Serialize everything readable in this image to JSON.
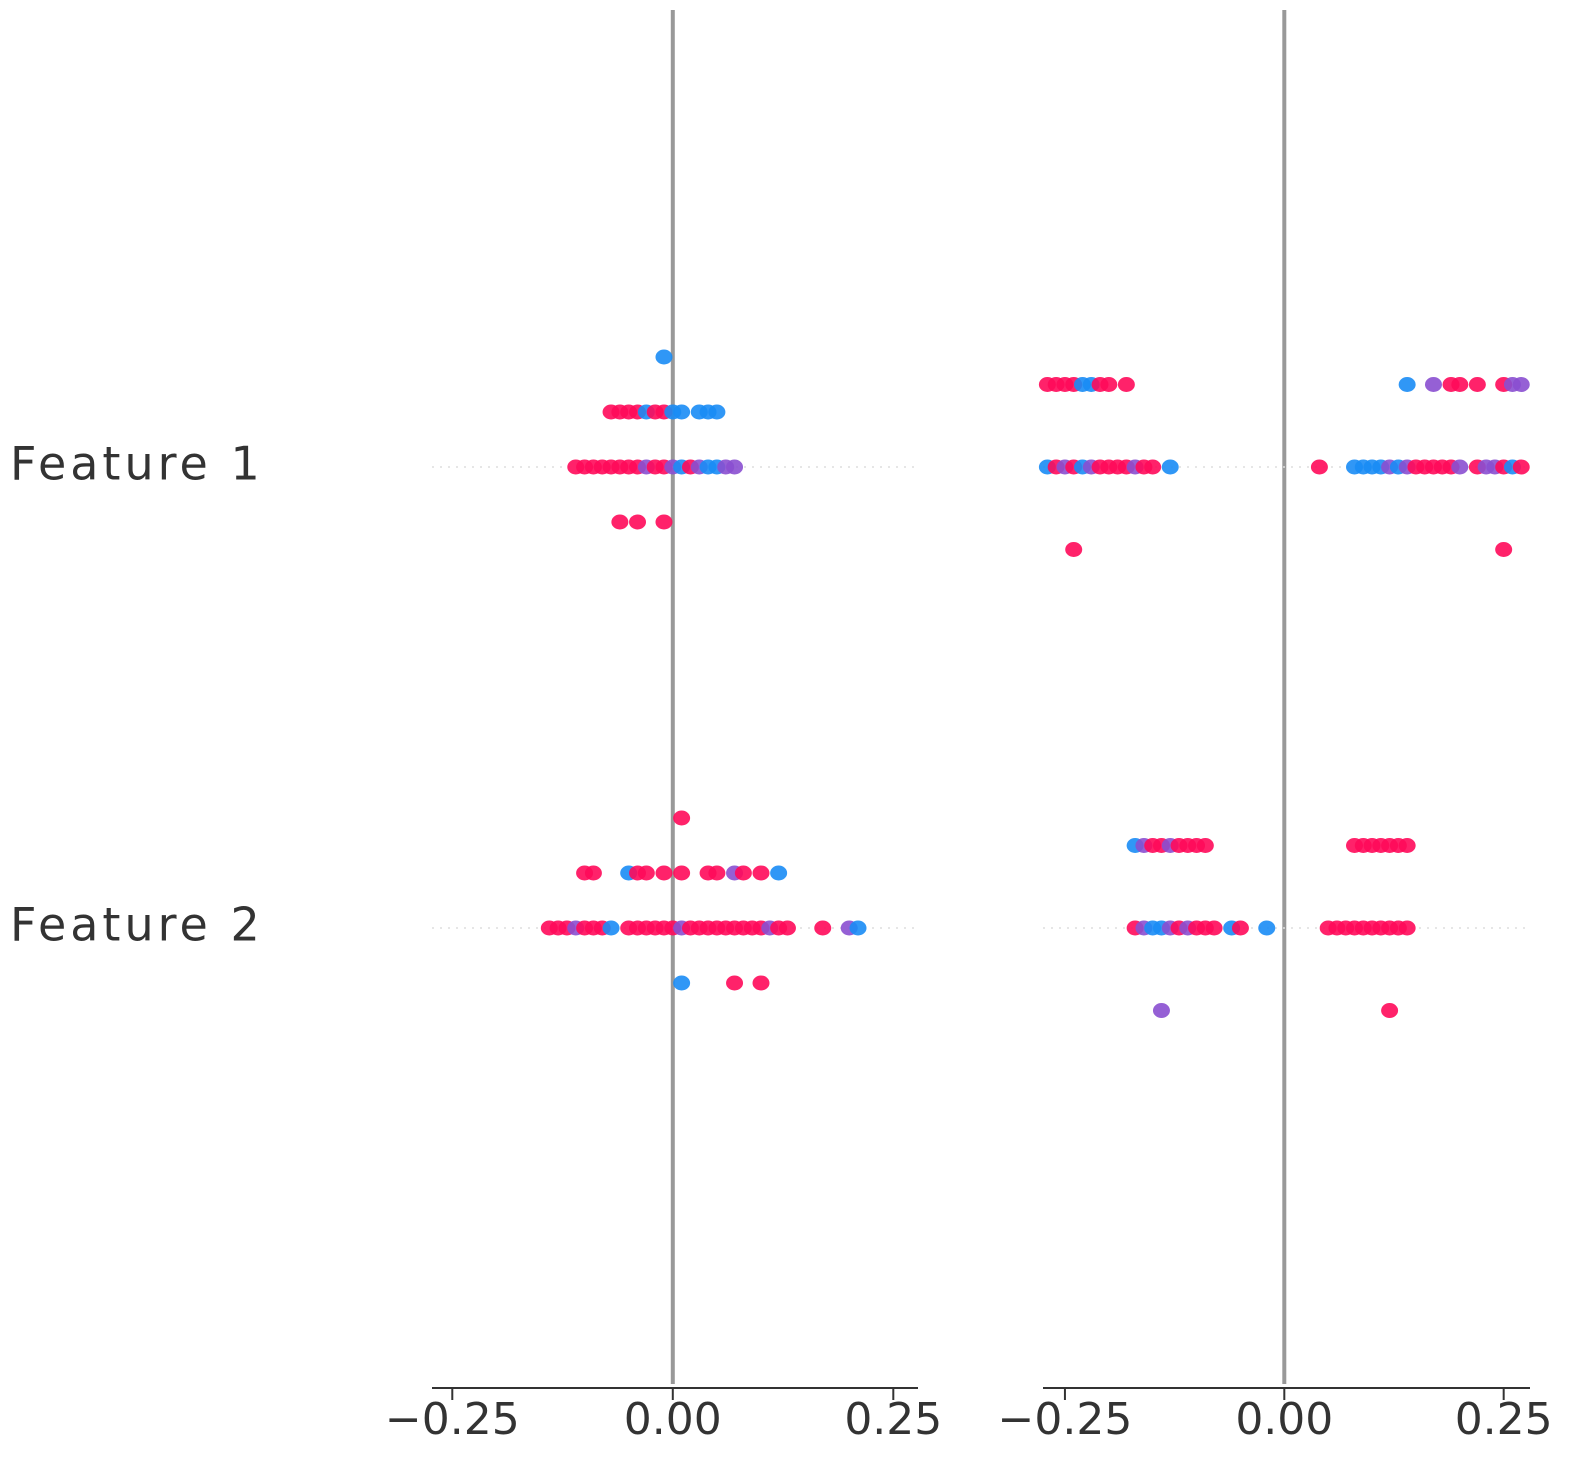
{
  "chart_data": [
    {
      "type": "beeswarm",
      "xlim": [
        -0.273,
        0.278
      ],
      "xticks": [
        {
          "value": -0.25,
          "label": "−0.25"
        },
        {
          "value": 0,
          "label": "0.00"
        },
        {
          "value": 0.25,
          "label": "0.25"
        }
      ],
      "zero_line": 0,
      "series": [
        {
          "name": "Feature 1",
          "values": [
            -0.11,
            -0.1,
            -0.09,
            -0.08,
            -0.07,
            -0.06,
            -0.05,
            -0.04,
            -0.03,
            -0.02,
            -0.01,
            0,
            0.01,
            0.02,
            0.03,
            0.04,
            0.05,
            0.06,
            0.07,
            -0.07,
            -0.06,
            -0.05,
            -0.04,
            -0.03,
            -0.02,
            -0.01,
            0,
            0.01,
            0.03,
            0.04,
            0.05,
            -0.06,
            -0.04,
            -0.01,
            -0.01
          ],
          "colors": [
            "#ff0a5a",
            "#ff0a5a",
            "#ff0a5a",
            "#ff0a5a",
            "#ff0a5a",
            "#ff0a5a",
            "#ff0a5a",
            "#ff0a5a",
            "#8a4fd0",
            "#ff0a5a",
            "#ff0a5a",
            "#8a4fd0",
            "#1a8cf5",
            "#ff0a5a",
            "#8a4fd0",
            "#1a8cf5",
            "#1a8cf5",
            "#8a4fd0",
            "#8a4fd0",
            "#ff0a5a",
            "#ff0a5a",
            "#ff0a5a",
            "#ff0a5a",
            "#1a8cf5",
            "#ff0a5a",
            "#ff0a5a",
            "#1a8cf5",
            "#1a8cf5",
            "#1a8cf5",
            "#1a8cf5",
            "#1a8cf5",
            "#ff0a5a",
            "#ff0a5a",
            "#ff0a5a",
            "#1a8cf5"
          ]
        },
        {
          "name": "Feature 2",
          "values": [
            -0.14,
            -0.13,
            -0.12,
            -0.11,
            -0.1,
            -0.09,
            -0.08,
            -0.07,
            -0.05,
            -0.04,
            -0.03,
            -0.02,
            -0.01,
            0,
            0.01,
            0.02,
            0.03,
            0.04,
            0.05,
            0.06,
            0.07,
            0.08,
            0.09,
            0.1,
            0.11,
            0.12,
            0.13,
            0.17,
            0.2,
            0.21,
            -0.1,
            -0.09,
            -0.05,
            -0.04,
            -0.03,
            -0.01,
            0.01,
            0.04,
            0.05,
            0.07,
            0.08,
            0.1,
            0.12,
            0.01,
            0.07,
            0.1,
            0.01
          ],
          "colors": [
            "#ff0a5a",
            "#ff0a5a",
            "#ff0a5a",
            "#8a4fd0",
            "#ff0a5a",
            "#ff0a5a",
            "#ff0a5a",
            "#1a8cf5",
            "#ff0a5a",
            "#ff0a5a",
            "#ff0a5a",
            "#ff0a5a",
            "#ff0a5a",
            "#ff0a5a",
            "#8a4fd0",
            "#ff0a5a",
            "#ff0a5a",
            "#ff0a5a",
            "#ff0a5a",
            "#ff0a5a",
            "#ff0a5a",
            "#ff0a5a",
            "#ff0a5a",
            "#ff0a5a",
            "#8a4fd0",
            "#ff0a5a",
            "#ff0a5a",
            "#ff0a5a",
            "#8a4fd0",
            "#1a8cf5",
            "#ff0a5a",
            "#ff0a5a",
            "#1a8cf5",
            "#ff0a5a",
            "#ff0a5a",
            "#ff0a5a",
            "#ff0a5a",
            "#ff0a5a",
            "#ff0a5a",
            "#8a4fd0",
            "#ff0a5a",
            "#ff0a5a",
            "#1a8cf5",
            "#1a8cf5",
            "#ff0a5a",
            "#ff0a5a",
            "#ff0a5a"
          ]
        }
      ]
    },
    {
      "type": "beeswarm",
      "xlim": [
        -0.275,
        0.28
      ],
      "xticks": [
        {
          "value": -0.25,
          "label": "−0.25"
        },
        {
          "value": 0,
          "label": "0.00"
        },
        {
          "value": 0.25,
          "label": "0.25"
        }
      ],
      "zero_line": 0,
      "series": [
        {
          "values": [
            -0.27,
            -0.26,
            -0.25,
            -0.24,
            -0.23,
            -0.22,
            -0.21,
            -0.2,
            -0.19,
            -0.18,
            -0.17,
            -0.16,
            -0.15,
            -0.13,
            0.04,
            0.08,
            0.09,
            0.1,
            0.11,
            0.12,
            0.13,
            0.14,
            0.15,
            0.16,
            0.17,
            0.18,
            0.19,
            0.2,
            0.22,
            0.23,
            0.24,
            0.25,
            0.26,
            0.27,
            -0.27,
            -0.26,
            -0.25,
            -0.24,
            -0.23,
            -0.22,
            -0.21,
            -0.2,
            -0.18,
            0.14,
            0.17,
            0.19,
            0.2,
            0.22,
            0.25,
            0.26,
            0.27,
            -0.24,
            0.25
          ],
          "colors": [
            "#1a8cf5",
            "#ff0a5a",
            "#8a4fd0",
            "#ff0a5a",
            "#1a8cf5",
            "#8a4fd0",
            "#ff0a5a",
            "#ff0a5a",
            "#ff0a5a",
            "#ff0a5a",
            "#8a4fd0",
            "#ff0a5a",
            "#ff0a5a",
            "#1a8cf5",
            "#ff0a5a",
            "#1a8cf5",
            "#1a8cf5",
            "#1a8cf5",
            "#1a8cf5",
            "#8a4fd0",
            "#1a8cf5",
            "#8a4fd0",
            "#ff0a5a",
            "#ff0a5a",
            "#ff0a5a",
            "#ff0a5a",
            "#ff0a5a",
            "#8a4fd0",
            "#ff0a5a",
            "#8a4fd0",
            "#8a4fd0",
            "#ff0a5a",
            "#1a8cf5",
            "#ff0a5a",
            "#ff0a5a",
            "#ff0a5a",
            "#ff0a5a",
            "#ff0a5a",
            "#1a8cf5",
            "#1a8cf5",
            "#ff0a5a",
            "#ff0a5a",
            "#ff0a5a",
            "#1a8cf5",
            "#8a4fd0",
            "#ff0a5a",
            "#ff0a5a",
            "#ff0a5a",
            "#ff0a5a",
            "#8a4fd0",
            "#8a4fd0",
            "#ff0a5a",
            "#ff0a5a"
          ]
        },
        {
          "values": [
            -0.17,
            -0.16,
            -0.15,
            -0.14,
            -0.13,
            -0.12,
            -0.11,
            -0.1,
            -0.09,
            -0.08,
            -0.06,
            -0.05,
            -0.02,
            0.05,
            0.06,
            0.07,
            0.08,
            0.09,
            0.1,
            0.11,
            0.12,
            0.13,
            0.14,
            -0.17,
            -0.16,
            -0.15,
            -0.14,
            -0.13,
            -0.12,
            -0.11,
            -0.1,
            -0.09,
            0.08,
            0.09,
            0.1,
            0.11,
            0.12,
            0.13,
            0.14,
            -0.14,
            0.12
          ],
          "colors": [
            "#ff0a5a",
            "#8a4fd0",
            "#1a8cf5",
            "#1a8cf5",
            "#8a4fd0",
            "#ff0a5a",
            "#8a4fd0",
            "#ff0a5a",
            "#ff0a5a",
            "#ff0a5a",
            "#1a8cf5",
            "#ff0a5a",
            "#1a8cf5",
            "#ff0a5a",
            "#ff0a5a",
            "#ff0a5a",
            "#ff0a5a",
            "#ff0a5a",
            "#ff0a5a",
            "#ff0a5a",
            "#ff0a5a",
            "#ff0a5a",
            "#ff0a5a",
            "#1a8cf5",
            "#8a4fd0",
            "#ff0a5a",
            "#ff0a5a",
            "#8a4fd0",
            "#ff0a5a",
            "#ff0a5a",
            "#ff0a5a",
            "#ff0a5a",
            "#ff0a5a",
            "#ff0a5a",
            "#ff0a5a",
            "#ff0a5a",
            "#ff0a5a",
            "#ff0a5a",
            "#ff0a5a",
            "#8a4fd0",
            "#ff0a5a"
          ]
        }
      ]
    }
  ]
}
